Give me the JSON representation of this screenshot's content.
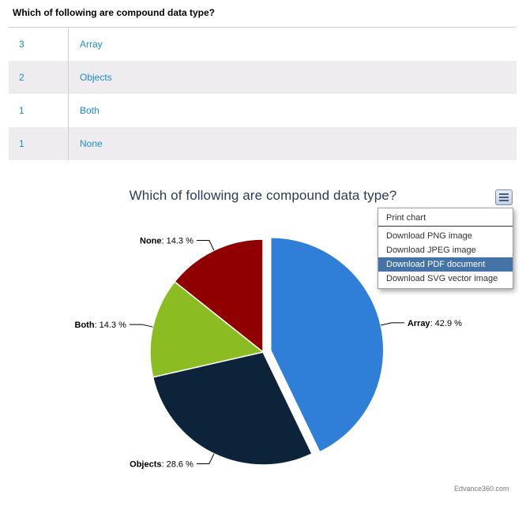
{
  "question": "Which of following are compound data type?",
  "table": {
    "rows": [
      {
        "count": "3",
        "answer": "Array"
      },
      {
        "count": "2",
        "answer": "Objects"
      },
      {
        "count": "1",
        "answer": "Both"
      },
      {
        "count": "1",
        "answer": "None"
      }
    ]
  },
  "chart_data": {
    "type": "pie",
    "title": "Which of following are compound data type?",
    "slices": [
      {
        "name": "Array",
        "value": 42.9,
        "color": "#2f7ed8",
        "sliced": true
      },
      {
        "name": "Objects",
        "value": 28.6,
        "color": "#0d233a"
      },
      {
        "name": "Both",
        "value": 14.3,
        "color": "#8bbc21"
      },
      {
        "name": "None",
        "value": 14.3,
        "color": "#910000"
      }
    ],
    "labels": [
      "Array: 42.9 %",
      "Objects: 28.6 %",
      "Both: 14.3 %",
      "None: 14.3 %"
    ],
    "unit": " %"
  },
  "menu": {
    "icon": "hamburger-icon",
    "items": [
      {
        "label": "Print chart"
      },
      {
        "label": "Download PNG image"
      },
      {
        "label": "Download JPEG image"
      },
      {
        "label": "Download PDF document",
        "active": true
      },
      {
        "label": "Download SVG vector image"
      }
    ]
  },
  "watermark": "Edvance360.com"
}
